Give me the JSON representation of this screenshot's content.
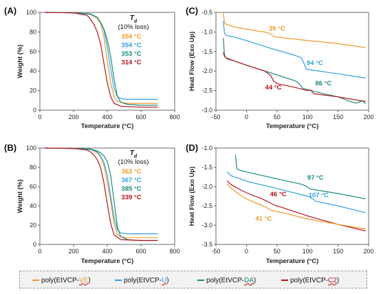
{
  "colors": {
    "VE": "#f0992b",
    "U": "#2f9fe0",
    "DA": "#1d8a7a",
    "C2": "#b5121b",
    "axis": "#444444"
  },
  "legend": [
    {
      "key": "VE",
      "prefix": "poly(EtVCP-",
      "suffix": "VE",
      "close": ")"
    },
    {
      "key": "U",
      "prefix": "poly(EtVCP-",
      "suffix": "U",
      "close": ")"
    },
    {
      "key": "DA",
      "prefix": "poly(EtVCP-",
      "suffix": "DA",
      "close": ")"
    },
    {
      "key": "C2",
      "prefix": "poly(EtVCP-",
      "suffix": "C2",
      "close": ")"
    }
  ],
  "chart_data": [
    {
      "panel": "(A)",
      "type": "line",
      "xlabel": "Temperature (°C)",
      "ylabel": "Weight (%)",
      "xlim": [
        0,
        800
      ],
      "ylim": [
        0,
        100
      ],
      "xticks": [
        0,
        200,
        400,
        600,
        800
      ],
      "yticks": [
        0,
        20,
        40,
        60,
        80,
        100
      ],
      "td_title": "Td",
      "td_subtitle": "(10% loss)",
      "td_values": [
        {
          "key": "VE",
          "text": "354 °C"
        },
        {
          "key": "U",
          "text": "354 °C"
        },
        {
          "key": "DA",
          "text": "353 °C"
        },
        {
          "key": "C2",
          "text": "314 °C"
        }
      ],
      "series": [
        {
          "key": "VE",
          "x": [
            30,
            200,
            300,
            340,
            360,
            380,
            400,
            420,
            440,
            460,
            480,
            520,
            600,
            700
          ],
          "y": [
            100,
            99.5,
            98,
            94,
            89,
            75,
            50,
            28,
            14,
            9,
            8,
            7,
            7,
            7
          ]
        },
        {
          "key": "U",
          "x": [
            30,
            200,
            300,
            340,
            360,
            380,
            400,
            420,
            440,
            460,
            480,
            520,
            600,
            700
          ],
          "y": [
            100,
            99.5,
            98,
            95,
            90,
            82,
            65,
            42,
            22,
            14,
            12,
            11,
            11,
            11
          ]
        },
        {
          "key": "DA",
          "x": [
            30,
            200,
            300,
            340,
            360,
            380,
            400,
            420,
            440,
            460,
            480,
            520,
            600,
            700
          ],
          "y": [
            100,
            99.5,
            98.5,
            95,
            90,
            83,
            72,
            55,
            32,
            14,
            8,
            6,
            5,
            5
          ]
        },
        {
          "key": "C2",
          "x": [
            30,
            200,
            280,
            300,
            320,
            340,
            360,
            380,
            400,
            420,
            440,
            480,
            600,
            700
          ],
          "y": [
            100,
            99.5,
            97,
            93,
            88,
            80,
            68,
            48,
            28,
            14,
            7,
            4,
            3,
            3
          ]
        }
      ]
    },
    {
      "panel": "(B)",
      "type": "line",
      "xlabel": "Temperature (°C)",
      "ylabel": "Weight (%)",
      "xlim": [
        0,
        800
      ],
      "ylim": [
        0,
        100
      ],
      "xticks": [
        0,
        200,
        400,
        600,
        800
      ],
      "yticks": [
        0,
        20,
        40,
        60,
        80,
        100
      ],
      "td_title": "Td",
      "td_subtitle": "(10% loss)",
      "td_values": [
        {
          "key": "VE",
          "text": "363 °C"
        },
        {
          "key": "U",
          "text": "367 °C"
        },
        {
          "key": "DA",
          "text": "385 °C"
        },
        {
          "key": "C2",
          "text": "339 °C"
        }
      ],
      "series": [
        {
          "key": "VE",
          "x": [
            30,
            200,
            300,
            340,
            360,
            380,
            400,
            420,
            440,
            460,
            480,
            520,
            600,
            700
          ],
          "y": [
            100,
            99.5,
            98.5,
            95,
            91,
            82,
            65,
            45,
            22,
            10,
            8,
            7,
            7,
            7
          ]
        },
        {
          "key": "U",
          "x": [
            30,
            200,
            300,
            340,
            360,
            380,
            400,
            420,
            440,
            460,
            480,
            520,
            600,
            700
          ],
          "y": [
            100,
            99.5,
            98.5,
            96,
            92,
            85,
            72,
            50,
            28,
            15,
            12,
            11,
            11,
            11
          ]
        },
        {
          "key": "DA",
          "x": [
            30,
            200,
            300,
            340,
            360,
            380,
            400,
            420,
            440,
            460,
            480,
            520,
            600,
            700
          ],
          "y": [
            100,
            99.5,
            99,
            97,
            95,
            92,
            86,
            72,
            45,
            18,
            8,
            5,
            4,
            4
          ]
        },
        {
          "key": "C2",
          "x": [
            30,
            200,
            280,
            300,
            320,
            340,
            360,
            380,
            400,
            420,
            440,
            480,
            600,
            700
          ],
          "y": [
            100,
            99.5,
            98,
            96,
            93,
            88,
            80,
            64,
            42,
            22,
            10,
            5,
            4,
            4
          ]
        }
      ]
    },
    {
      "panel": "(C)",
      "type": "line",
      "xlabel": "Temperature (°C)",
      "ylabel": "Heat Flow (Exo Up)",
      "xlim": [
        -50,
        200
      ],
      "ylim": [
        -3,
        -0.5
      ],
      "xticks": [
        -50,
        0,
        50,
        100,
        150,
        200
      ],
      "yticks": [
        -3,
        -2.5,
        -2,
        -1.5,
        -1,
        -0.5
      ],
      "ytick_labels": [
        "-3.0",
        "-2.5",
        "-2.0",
        "-1.5",
        "-1.0",
        "-0.5"
      ],
      "annotations": [
        {
          "key": "VE",
          "text": "39 °C",
          "x": 50,
          "y": -0.97
        },
        {
          "key": "U",
          "text": "94 °C",
          "x": 112,
          "y": -1.85
        },
        {
          "key": "DA",
          "text": "86 °C",
          "x": 126,
          "y": -2.37
        },
        {
          "key": "C2",
          "text": "44 °C",
          "x": 44,
          "y": -2.47
        }
      ],
      "series": [
        {
          "key": "VE",
          "x": [
            -38,
            -36,
            -34,
            -30,
            -20,
            0,
            20,
            30,
            39,
            45,
            60,
            100,
            150,
            195
          ],
          "y": [
            -0.52,
            -0.75,
            -0.8,
            -0.82,
            -0.87,
            -0.93,
            -0.98,
            -1.0,
            -1.05,
            -1.12,
            -1.15,
            -1.22,
            -1.3,
            -1.4
          ]
        },
        {
          "key": "U",
          "x": [
            -38,
            -36,
            -34,
            -30,
            -20,
            0,
            40,
            80,
            90,
            94,
            98,
            110,
            150,
            195
          ],
          "y": [
            -0.72,
            -1.02,
            -1.08,
            -1.1,
            -1.13,
            -1.22,
            -1.42,
            -1.6,
            -1.66,
            -1.8,
            -1.95,
            -1.98,
            -2.07,
            -2.18
          ]
        },
        {
          "key": "DA",
          "x": [
            -38,
            -36,
            -34,
            -30,
            -20,
            0,
            40,
            80,
            86,
            92,
            110,
            150,
            170,
            180,
            190,
            195
          ],
          "y": [
            -1.15,
            -1.58,
            -1.66,
            -1.7,
            -1.74,
            -1.85,
            -2.05,
            -2.25,
            -2.32,
            -2.44,
            -2.52,
            -2.66,
            -2.78,
            -2.82,
            -2.76,
            -2.84
          ]
        },
        {
          "key": "C2",
          "x": [
            -38,
            -36,
            -34,
            -30,
            -20,
            0,
            30,
            40,
            44,
            50,
            80,
            100,
            105,
            110,
            150,
            195
          ],
          "y": [
            -1.52,
            -1.62,
            -1.66,
            -1.68,
            -1.74,
            -1.85,
            -2.0,
            -2.12,
            -2.25,
            -2.32,
            -2.42,
            -2.5,
            -2.48,
            -2.58,
            -2.66,
            -2.78
          ]
        }
      ]
    },
    {
      "panel": "(D)",
      "type": "line",
      "xlabel": "Temperature (°C)",
      "ylabel": "Heat Flow (Exo Up)",
      "xlim": [
        -50,
        200
      ],
      "ylim": [
        -3.5,
        -1
      ],
      "xticks": [
        -50,
        0,
        50,
        100,
        150,
        200
      ],
      "yticks": [
        -3.5,
        -3,
        -2.5,
        -2,
        -1.5,
        -1
      ],
      "ytick_labels": [
        "-3.5",
        "-3.0",
        "-2.5",
        "-2.0",
        "-1.5",
        "-1.0"
      ],
      "annotations": [
        {
          "key": "DA",
          "text": "97 °C",
          "x": 113,
          "y": -1.82
        },
        {
          "key": "U",
          "text": "107 °C",
          "x": 118,
          "y": -2.28
        },
        {
          "key": "C2",
          "text": "46 °C",
          "x": 52,
          "y": -2.25
        },
        {
          "key": "VE",
          "text": "41 °C",
          "x": 28,
          "y": -2.88
        }
      ],
      "series": [
        {
          "key": "DA",
          "x": [
            -18,
            -16,
            -14,
            -10,
            0,
            50,
            90,
            97,
            104,
            150,
            195
          ],
          "y": [
            -1.18,
            -1.52,
            -1.56,
            -1.58,
            -1.62,
            -1.8,
            -1.94,
            -1.98,
            -2.06,
            -2.18,
            -2.32
          ]
        },
        {
          "key": "U",
          "x": [
            -32,
            -25,
            -10,
            0,
            50,
            100,
            107,
            114,
            150,
            195
          ],
          "y": [
            -1.62,
            -1.72,
            -1.8,
            -1.86,
            -2.05,
            -2.25,
            -2.3,
            -2.38,
            -2.5,
            -2.68
          ]
        },
        {
          "key": "C2",
          "x": [
            -32,
            -25,
            -10,
            0,
            30,
            46,
            60,
            100,
            150,
            195
          ],
          "y": [
            -1.85,
            -1.95,
            -2.08,
            -2.16,
            -2.35,
            -2.48,
            -2.55,
            -2.76,
            -2.98,
            -3.15
          ]
        },
        {
          "key": "VE",
          "x": [
            -32,
            -25,
            -10,
            0,
            30,
            41,
            60,
            100,
            150,
            195
          ],
          "y": [
            -1.92,
            -2.05,
            -2.22,
            -2.32,
            -2.52,
            -2.62,
            -2.68,
            -2.84,
            -2.98,
            -3.1
          ]
        }
      ]
    }
  ]
}
